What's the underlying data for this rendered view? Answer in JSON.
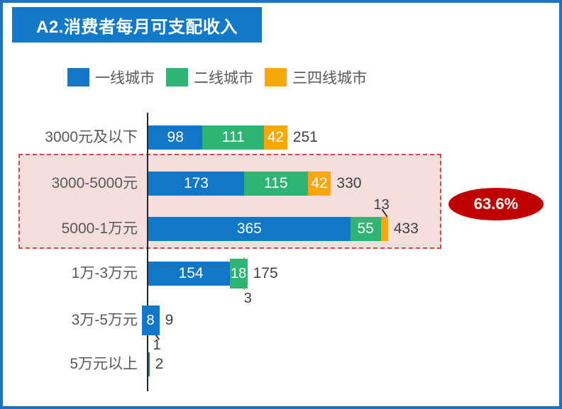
{
  "title": {
    "text": "A2.消费者每月可支配收入",
    "bg_color": "#1278c8"
  },
  "legend": [
    {
      "label": "一线城市",
      "color": "#1377c8"
    },
    {
      "label": "二线城市",
      "color": "#2fb573"
    },
    {
      "label": "三四线城市",
      "color": "#f9a80b"
    }
  ],
  "chart_data": {
    "type": "bar",
    "orientation": "horizontal",
    "stacked": true,
    "grid": false,
    "legend_position": "top",
    "categories": [
      "3000元及以下",
      "3000-5000元",
      "5000-1万元",
      "1万-3万元",
      "3万-5万元",
      "5万元以上"
    ],
    "series": [
      {
        "name": "一线城市",
        "key": "tier1",
        "color": "#1377c8",
        "values": [
          98,
          173,
          365,
          154,
          8,
          2
        ]
      },
      {
        "name": "二线城市",
        "key": "tier2",
        "color": "#2fb573",
        "values": [
          111,
          115,
          55,
          18,
          1,
          0
        ]
      },
      {
        "name": "三四线城市",
        "key": "tier34",
        "color": "#f9a80b",
        "values": [
          42,
          42,
          13,
          3,
          0,
          0
        ]
      }
    ],
    "totals": [
      251,
      330,
      433,
      175,
      9,
      2
    ],
    "label_positions": [
      [
        "in",
        "in",
        "in"
      ],
      [
        "in",
        "in",
        "in"
      ],
      [
        "in",
        "in",
        "above-leader"
      ],
      [
        "in",
        "boxed",
        "below"
      ],
      [
        "boxed",
        "below-leader",
        "none"
      ],
      [
        "none",
        "none",
        "none"
      ]
    ],
    "highlight": {
      "rows": [
        "3000-5000元",
        "5000-1万元"
      ],
      "annotation": "63.6%",
      "box_border_color": "#cf4a42",
      "box_fill_color": "#f4dedd",
      "ellipse_color": "#c00000"
    }
  }
}
